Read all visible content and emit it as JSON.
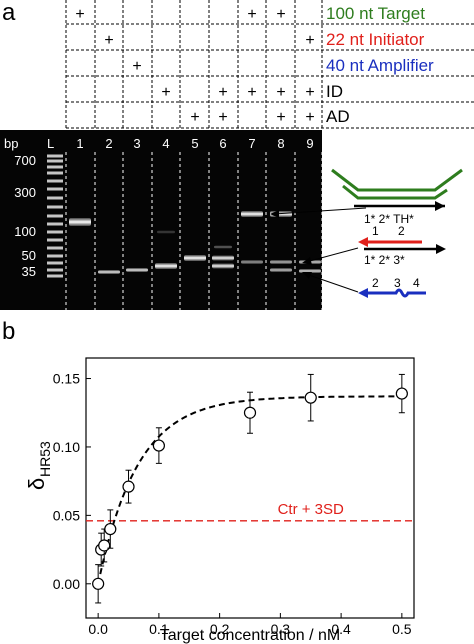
{
  "panel_a": {
    "label": "a",
    "rows": [
      {
        "name": "100 nt Target",
        "color": "#2e7d1e",
        "marks": [
          1,
          7,
          8
        ]
      },
      {
        "name": "22 nt Initiator",
        "color": "#e0201b",
        "marks": [
          2,
          9
        ]
      },
      {
        "name": "40 nt Amplifier",
        "color": "#1a2fbf",
        "marks": [
          3
        ]
      },
      {
        "name": "ID",
        "color": "#000000",
        "marks": [
          4,
          6,
          7,
          8,
          9
        ]
      },
      {
        "name": "AD",
        "color": "#000000",
        "marks": [
          5,
          6,
          8,
          9
        ]
      }
    ],
    "mark_symbol": "+",
    "gel": {
      "bp_label": "bp",
      "ladder_label": "L",
      "lane_labels": [
        "1",
        "2",
        "3",
        "4",
        "5",
        "6",
        "7",
        "8",
        "9"
      ],
      "size_labels": [
        "700",
        "300",
        "100",
        "50",
        "35"
      ]
    },
    "schematic": {
      "target_strand_label": "1* 2* TH*",
      "initiator_numbers": [
        "1",
        "2"
      ],
      "complement_label": "1* 2* 3*",
      "amplifier_numbers": [
        "2",
        "3",
        "4"
      ],
      "colors": {
        "target": "#2e7d1e",
        "initiator": "#e0201b",
        "amplifier": "#1a2fbf"
      }
    }
  },
  "panel_b": {
    "label": "b",
    "chart_data": {
      "type": "scatter",
      "x": [
        0.0,
        0.005,
        0.01,
        0.02,
        0.05,
        0.1,
        0.25,
        0.35,
        0.5
      ],
      "y": [
        0.0,
        0.025,
        0.028,
        0.04,
        0.071,
        0.101,
        0.125,
        0.136,
        0.139
      ],
      "yerr": [
        0.014,
        0.012,
        0.012,
        0.014,
        0.012,
        0.013,
        0.015,
        0.017,
        0.014
      ],
      "fit_line": "dashed black saturating curve",
      "threshold": {
        "y": 0.046,
        "label": "Ctr + 3SD",
        "color": "#e0201b"
      },
      "xlabel": "Target concentration / nM",
      "ylabel_main": "δ",
      "ylabel_sub": "HR53",
      "xlim": [
        -0.02,
        0.52
      ],
      "ylim": [
        -0.025,
        0.165
      ],
      "xticks": [
        "0.0",
        "0.1",
        "0.2",
        "0.3",
        "0.4",
        "0.5"
      ],
      "yticks": [
        "0.00",
        "0.05",
        "0.10",
        "0.15"
      ]
    }
  }
}
